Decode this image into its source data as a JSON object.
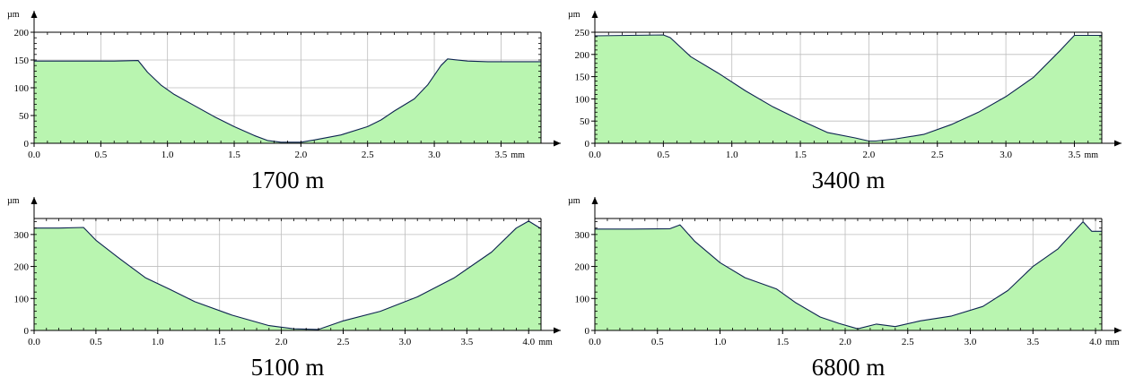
{
  "figure": {
    "colors": {
      "fill": "#b9f5b0",
      "line": "#0d2350",
      "grid": "#bdbdbd",
      "axis": "#000000"
    }
  },
  "chart_data": [
    {
      "type": "area",
      "caption": "1700 m",
      "x_unit": "mm",
      "y_unit": "µm",
      "xlim": [
        0,
        3.8
      ],
      "ylim": [
        0,
        200
      ],
      "x_ticks": [
        {
          "value": 0,
          "label": "0.0"
        },
        {
          "value": 0.5,
          "label": "0.5"
        },
        {
          "value": 1,
          "label": "1.0"
        },
        {
          "value": 1.5,
          "label": "1.5"
        },
        {
          "value": 2,
          "label": "2.0"
        },
        {
          "value": 2.5,
          "label": "2.5"
        },
        {
          "value": 3,
          "label": "3.0"
        },
        {
          "value": 3.5,
          "label": "3.5"
        }
      ],
      "y_ticks": [
        0,
        50,
        100,
        150,
        200
      ],
      "grid": true,
      "series": [
        {
          "x": [
            0,
            0.3,
            0.6,
            0.78,
            0.85,
            0.95,
            1.05,
            1.2,
            1.35,
            1.5,
            1.65,
            1.75,
            1.85,
            2.0,
            2.1,
            2.3,
            2.5,
            2.6,
            2.7,
            2.85,
            2.95,
            3.05,
            3.1,
            3.25,
            3.4,
            3.55,
            3.8
          ],
          "y": [
            148,
            148,
            148,
            149,
            128,
            105,
            88,
            68,
            48,
            30,
            14,
            5,
            2,
            2,
            6,
            15,
            30,
            42,
            58,
            80,
            105,
            140,
            152,
            148,
            147,
            147,
            147
          ]
        }
      ]
    },
    {
      "type": "area",
      "caption": "3400 m",
      "x_unit": "mm",
      "y_unit": "µm",
      "xlim": [
        0,
        3.7
      ],
      "ylim": [
        0,
        250
      ],
      "x_ticks": [
        {
          "value": 0,
          "label": "0.0"
        },
        {
          "value": 0.5,
          "label": "0.5"
        },
        {
          "value": 1,
          "label": "1.0"
        },
        {
          "value": 1.5,
          "label": "1.5"
        },
        {
          "value": 2,
          "label": "2.0"
        },
        {
          "value": 2.5,
          "label": "2.5"
        },
        {
          "value": 3,
          "label": "3.0"
        },
        {
          "value": 3.5,
          "label": "3.5"
        }
      ],
      "y_ticks": [
        0,
        50,
        100,
        150,
        200,
        250
      ],
      "grid": true,
      "series": [
        {
          "x": [
            0,
            0.25,
            0.5,
            0.55,
            0.7,
            0.9,
            1.1,
            1.3,
            1.5,
            1.7,
            1.9,
            2.0,
            2.05,
            2.2,
            2.4,
            2.6,
            2.8,
            3.0,
            3.2,
            3.4,
            3.5,
            3.7
          ],
          "y": [
            242,
            243,
            244,
            238,
            195,
            158,
            118,
            82,
            52,
            24,
            12,
            5,
            5,
            10,
            20,
            42,
            70,
            105,
            148,
            210,
            243,
            243
          ]
        }
      ]
    },
    {
      "type": "area",
      "caption": "5100 m",
      "x_unit": "mm",
      "y_unit": "µm",
      "xlim": [
        0,
        4.1
      ],
      "ylim": [
        0,
        350
      ],
      "x_ticks": [
        {
          "value": 0,
          "label": "0.0"
        },
        {
          "value": 0.5,
          "label": "0.5"
        },
        {
          "value": 1,
          "label": "1.0"
        },
        {
          "value": 1.5,
          "label": "1.5"
        },
        {
          "value": 2,
          "label": "2.0"
        },
        {
          "value": 2.5,
          "label": "2.5"
        },
        {
          "value": 3,
          "label": "3.0"
        },
        {
          "value": 3.5,
          "label": "3.5"
        },
        {
          "value": 4,
          "label": "4.0"
        }
      ],
      "y_ticks": [
        0,
        100,
        200,
        300
      ],
      "grid": true,
      "series": [
        {
          "x": [
            0,
            0.2,
            0.4,
            0.5,
            0.7,
            0.9,
            1.1,
            1.3,
            1.6,
            1.9,
            2.1,
            2.3,
            2.5,
            2.8,
            3.1,
            3.4,
            3.7,
            3.9,
            4.0,
            4.1
          ],
          "y": [
            320,
            320,
            322,
            282,
            222,
            165,
            128,
            90,
            48,
            15,
            5,
            3,
            30,
            60,
            105,
            165,
            245,
            320,
            342,
            318
          ]
        }
      ]
    },
    {
      "type": "area",
      "caption": "6800 m",
      "x_unit": "mm",
      "y_unit": "µm",
      "xlim": [
        0,
        4.05
      ],
      "ylim": [
        0,
        350
      ],
      "x_ticks": [
        {
          "value": 0,
          "label": "0.0"
        },
        {
          "value": 0.5,
          "label": "0.5"
        },
        {
          "value": 1,
          "label": "1.0"
        },
        {
          "value": 1.5,
          "label": "1.5"
        },
        {
          "value": 2,
          "label": "2.0"
        },
        {
          "value": 2.5,
          "label": "2.5"
        },
        {
          "value": 3,
          "label": "3.0"
        },
        {
          "value": 3.5,
          "label": "3.5"
        },
        {
          "value": 4,
          "label": "4.0"
        }
      ],
      "y_ticks": [
        0,
        100,
        200,
        300
      ],
      "grid": true,
      "series": [
        {
          "x": [
            0,
            0.3,
            0.6,
            0.68,
            0.8,
            1.0,
            1.2,
            1.45,
            1.6,
            1.8,
            1.95,
            2.1,
            2.25,
            2.4,
            2.6,
            2.85,
            3.1,
            3.3,
            3.5,
            3.7,
            3.9,
            3.97,
            4.05
          ],
          "y": [
            317,
            317,
            318,
            330,
            278,
            212,
            165,
            130,
            88,
            42,
            22,
            5,
            20,
            12,
            30,
            45,
            75,
            125,
            200,
            255,
            340,
            310,
            310
          ]
        }
      ]
    }
  ]
}
